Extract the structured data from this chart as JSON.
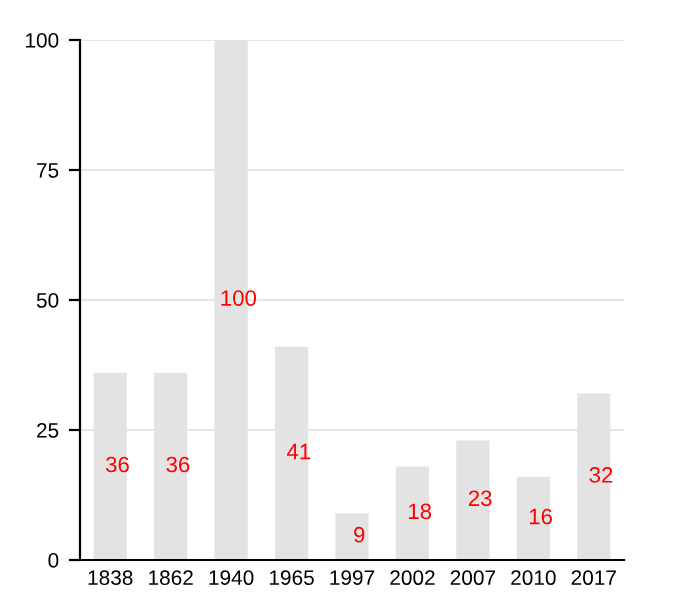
{
  "chart_data": {
    "type": "bar",
    "categories": [
      "1838",
      "1862",
      "1940",
      "1965",
      "1997",
      "2002",
      "2007",
      "2010",
      "2017"
    ],
    "values": [
      36,
      36,
      100,
      41,
      9,
      18,
      23,
      16,
      32
    ],
    "color": "#e3e3e3",
    "ylim": [
      0,
      100
    ],
    "yticks": [
      0,
      25,
      50,
      75,
      100
    ],
    "grid": "y",
    "data_labels": true
  }
}
